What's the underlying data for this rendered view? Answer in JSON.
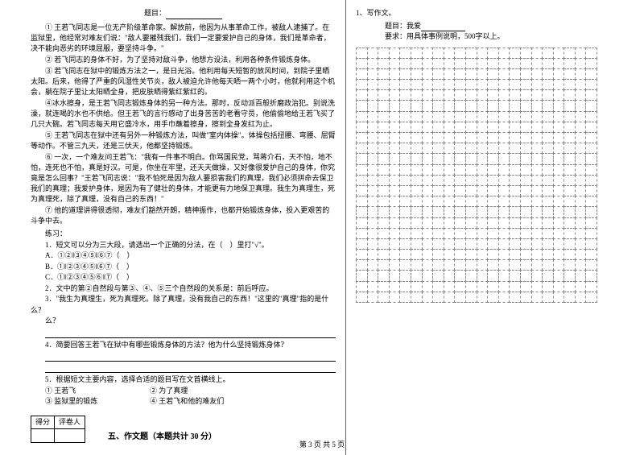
{
  "left": {
    "title_prefix": "题目：",
    "paragraphs": [
      "① 王若飞同志是一位无产阶级革命家。解放前，他因为从事革命工作，被敌人逮捕了。在监狱里，他经常对难友们说：\"敌人要摧残我们，我们一定要爱护自己的身体，我们是革命者，决不能向恶劣的环境屈服，要坚持斗争。\"",
      "② 若飞同志的身体不好，为了坚持对敌斗争，他想方设法，利用各种条件锻炼身体。",
      "③ 若飞同志在狱中的锻炼方法之一，是日光浴。他利用每天短暂的放风时间，到院子里晒太阳。后来，他得了严重的风湿性关节炎，敌人被迫允许他每天晒一两个小时，他就利用这个机会，躺在院子里让太阳晒全身，把皮肤晒得紫红紫红的。",
      "④冰水擦身，是王若飞同志锻炼身体的另一种方法。那时，反动派百般折磨政治犯。别说洗澡，就连喝的水也不供给。但王若飞的言行感动了出身苦苦的老看守员，他偷偷地给王若飞买了几只大碗。若飞同志每天用它盛冷水，用手巾蘸着擦身，擦到全身发红为止。",
      "⑤ 王若飞同志在狱中还有另外一种锻炼方法，叫做\"室内体操\"。体操包括扭腰、弯腰、屈臂等动作。不管三九天，还是三伏天，他都坚持锻炼。",
      "⑥ 一次，一个难友问王若飞：\"我有一件事不明白。你骂国民党，骂蒋介石，天不怕，地不怕，连死也不怕，真是好汉。可是，你坐在牢里，还天天做操，又好像很爱护自己的身体，你究竟是怎么回事？\"王若飞同志说：\"我不怕死是因为敌人要损害我们的真理，我们必须拼命去保卫我们的真理；我爱护身体，是因为有了健壮的身体，才能更有力地保卫真理。我生为真理生，死为真理死，除了真理，没有自己的东西！\"",
      "⑦ 他的道理讲得很透彻，难友们豁然开朗，精神振作，也都开始锻炼身体，投入更艰苦的斗争中去。"
    ],
    "practice_label": "练习：",
    "q1": {
      "stem": "1．短文可以分为三大段，请选出一个正确的分法，在（　）里打\"√\"。",
      "opts": [
        "A．①②‖③④⑤‖⑥⑦（　）",
        "B．①‖②③④⑤‖⑥⑦（　）",
        "C．①‖②③④⑤⑥‖⑦（　）"
      ]
    },
    "q2": "2．文中的第②自然段与第③、④、⑤三个自然段的关系是：前后呼应。",
    "q3": "3．\"我生为真理生，死为真理死。除了真理，没有我自己的东西！\"这里的\"真理\"指的是什么？",
    "q4": "4．简要回答王若飞在狱中有哪些锻炼身体的方法？他为什么坚持锻炼身体？",
    "q5": {
      "stem": "5．根据短文主要内容，选择合适的题目写在文首横线上。",
      "opts_row1_a": "① 王若飞",
      "opts_row1_b": "② 为了真理",
      "opts_row2_a": "③ 监狱里的锻炼",
      "opts_row2_b": "④ 王若飞和他的难友们"
    },
    "score_head_a": "得分",
    "score_head_b": "评卷人",
    "section5": "五、作文题（本题共计 30 分）"
  },
  "right": {
    "line1": "1、写作文。",
    "title_label": "题目：我爱",
    "req": "要求：用具体事例说明，500字以上。",
    "grid": {
      "rows": 24,
      "cols": 22
    }
  },
  "footer": "第 3 页 共 5 页",
  "style": {
    "font_size_body": 9,
    "font_size_section": 10,
    "color_text": "#000000",
    "color_bg": "#ffffff",
    "grid_border": "#888888",
    "divider": "#666666"
  }
}
